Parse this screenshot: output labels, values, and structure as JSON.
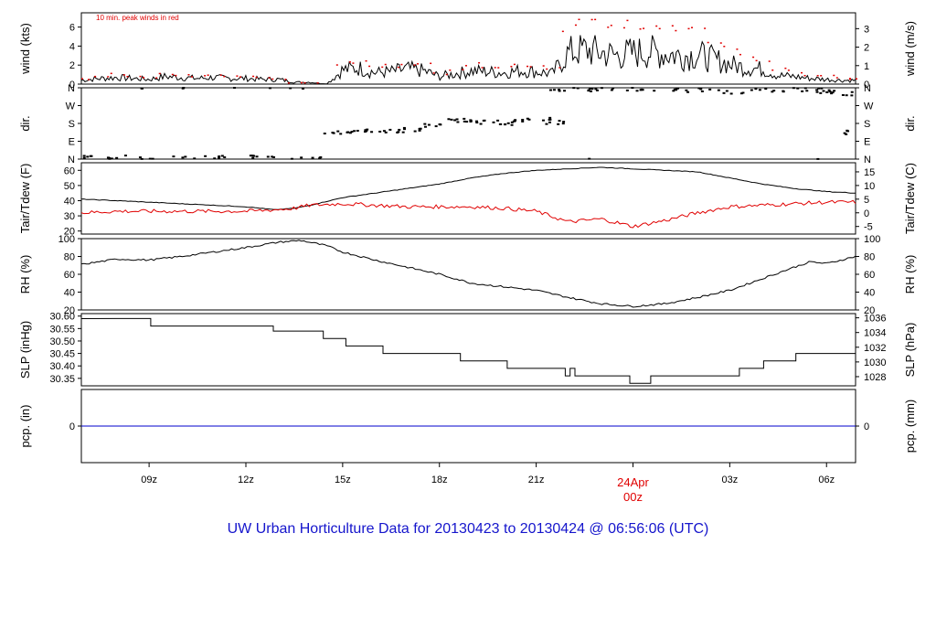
{
  "title": "UW Urban Horticulture Data for 20130423  to  20130424 @ 06:56:06  (UTC)",
  "note": "10 min. peak winds in red",
  "date_label": {
    "day": "24Apr",
    "hour": "00z"
  },
  "colors": {
    "series": "#000000",
    "dew": "#e00000",
    "peak": "#e00000",
    "precip": "#0000cc",
    "title": "#1515cc"
  },
  "chart_data": [
    {
      "type": "line",
      "name_left": "wind (kts)",
      "name_right": "wind (m/s)",
      "ylim": [
        0,
        7.5
      ],
      "yticks_left": [
        "0",
        "2",
        "4",
        "6"
      ],
      "yticks_right": [
        "0",
        "1",
        "2",
        "3"
      ],
      "x_hours": [
        6.9,
        7.5,
        8,
        8.5,
        9,
        9.5,
        10,
        10.5,
        11,
        11.5,
        12,
        12.5,
        13,
        13.5,
        14,
        14.5,
        15,
        15.5,
        16,
        16.5,
        17,
        17.5,
        18,
        18.5,
        19,
        19.5,
        20,
        20.5,
        21,
        21.5,
        22,
        22.5,
        23,
        23.5,
        24,
        24.5,
        25,
        25.5,
        26,
        26.5,
        27,
        27.5,
        28,
        28.5,
        29,
        29.5,
        30,
        30.5,
        30.9
      ],
      "values": [
        0.4,
        0.6,
        0.7,
        0.6,
        0.5,
        0.8,
        0.7,
        0.6,
        0.7,
        0.6,
        0.6,
        0.5,
        0.5,
        0.2,
        0.2,
        0.0,
        1.5,
        1.7,
        1.2,
        1.3,
        1.6,
        1.4,
        0.8,
        1.1,
        1.4,
        1.3,
        1.2,
        1.4,
        1.3,
        1.1,
        3.3,
        3.6,
        3.3,
        3.0,
        3.3,
        3.4,
        3.2,
        3.0,
        3.1,
        2.6,
        2.1,
        1.7,
        1.6,
        0.9,
        0.8,
        0.6,
        0.5,
        0.4,
        0.4
      ],
      "peak_values": [
        0.6,
        0.8,
        1.1,
        0.9,
        0.7,
        1.1,
        1.0,
        0.9,
        1.0,
        0.9,
        0.9,
        0.8,
        0.6,
        0.2,
        0.2,
        0.0,
        2.2,
        2.4,
        1.9,
        2.0,
        2.3,
        2.1,
        1.2,
        1.7,
        2.1,
        2.0,
        1.9,
        2.1,
        2.0,
        1.8,
        6.2,
        6.6,
        6.3,
        5.8,
        6.5,
        6.4,
        5.9,
        5.6,
        5.5,
        4.7,
        3.9,
        3.0,
        2.6,
        1.6,
        1.4,
        1.0,
        0.9,
        0.7,
        0.6
      ]
    },
    {
      "type": "scatter",
      "name_left": "dir.",
      "name_right": "dir.",
      "ylim": [
        0,
        360
      ],
      "yticks": [
        "N",
        "E",
        "S",
        "W",
        "N"
      ],
      "x_hours": [
        6.9,
        8,
        9,
        10,
        11,
        12,
        13,
        14,
        14.8,
        15.5,
        16,
        16.5,
        17,
        17.8,
        18.5,
        19,
        19.5,
        20,
        20.5,
        21,
        21.5,
        21.8,
        22.5,
        23,
        24,
        25,
        26,
        27,
        28,
        29,
        29.5,
        30,
        30.5,
        30.8
      ],
      "values": [
        10,
        8,
        5,
        5,
        12,
        8,
        6,
        3,
        135,
        140,
        140,
        142,
        150,
        170,
        195,
        190,
        185,
        180,
        195,
        200,
        185,
        350,
        355,
        350,
        352,
        350,
        348,
        340,
        345,
        350,
        352,
        340,
        330,
        135
      ]
    },
    {
      "type": "line",
      "name_left": "Tair/Tdew (F)",
      "name_right": "Tair/Tdew (C)",
      "ylim": [
        18,
        65
      ],
      "yticks_left": [
        "20",
        "30",
        "40",
        "50",
        "60"
      ],
      "yticks_right": [
        "-5",
        "0",
        "5",
        "10",
        "15"
      ],
      "x_hours": [
        6.9,
        8,
        9,
        10,
        11,
        12,
        12.9,
        13.5,
        14,
        15,
        16,
        17,
        18,
        19,
        20,
        21,
        22,
        23,
        24,
        25,
        26,
        27,
        28,
        29,
        30,
        30.9
      ],
      "series": [
        {
          "name": "Tair",
          "values": [
            41,
            40,
            39,
            38,
            37,
            36,
            34,
            35,
            37,
            42,
            45,
            48,
            51,
            55,
            58,
            60,
            61,
            62,
            61,
            60,
            59,
            55,
            51,
            48,
            46,
            45
          ]
        },
        {
          "name": "Tdew",
          "values": [
            32,
            33,
            33,
            33,
            33,
            33,
            34,
            35,
            37,
            38,
            37,
            36,
            36,
            36,
            35,
            33,
            26,
            28,
            23,
            27,
            32,
            36,
            37,
            38,
            39,
            39
          ]
        }
      ]
    },
    {
      "type": "line",
      "name_left": "RH (%)",
      "name_right": "RH (%)",
      "ylim": [
        20,
        100
      ],
      "yticks": [
        "20",
        "40",
        "60",
        "80",
        "100"
      ],
      "x_hours": [
        6.9,
        8,
        9,
        10,
        11,
        12,
        13,
        13.7,
        14.5,
        15,
        16,
        17,
        18,
        19,
        20,
        21,
        22,
        23,
        24,
        25,
        26,
        27,
        28,
        29,
        29.5,
        30,
        30.9
      ],
      "values": [
        71,
        77,
        76,
        80,
        85,
        90,
        96,
        98,
        92,
        85,
        76,
        68,
        60,
        50,
        46,
        42,
        34,
        27,
        24,
        27,
        34,
        42,
        55,
        68,
        74,
        72,
        80
      ]
    },
    {
      "type": "line",
      "name_left": "SLP (inHg)",
      "name_right": "SLP (hPa)",
      "ylim": [
        30.32,
        30.61
      ],
      "yticks_left": [
        "30.35",
        "30.40",
        "30.45",
        "30.50",
        "30.55",
        "30.60"
      ],
      "yticks_right": [
        "1028",
        "1030",
        "1032",
        "1034",
        "1036"
      ],
      "step_x_hours": [
        6.9,
        9.05,
        12.85,
        14.4,
        15.1,
        16.25,
        18.65,
        20.1,
        21.9,
        22.05,
        22.2,
        23.9,
        24.55,
        27.3,
        28.05,
        29.05,
        30.9
      ],
      "values": [
        30.59,
        30.56,
        30.54,
        30.51,
        30.48,
        30.45,
        30.42,
        30.39,
        30.36,
        30.39,
        30.36,
        30.33,
        30.36,
        30.39,
        30.42,
        30.45,
        30.45
      ]
    },
    {
      "type": "line",
      "name_left": "pcp. (in)",
      "name_right": "pcp. (mm)",
      "ylim": [
        -1,
        1
      ],
      "yticks_left": [
        "0"
      ],
      "yticks_right": [
        "0"
      ],
      "x_hours": [
        6.9,
        30.9
      ],
      "values": [
        0,
        0
      ]
    }
  ],
  "x_ticks": [
    {
      "hour": 9,
      "label": "09z"
    },
    {
      "hour": 12,
      "label": "12z"
    },
    {
      "hour": 15,
      "label": "15z"
    },
    {
      "hour": 18,
      "label": "18z"
    },
    {
      "hour": 21,
      "label": "21z"
    },
    {
      "hour": 27,
      "label": "03z"
    },
    {
      "hour": 30,
      "label": "06z"
    }
  ]
}
